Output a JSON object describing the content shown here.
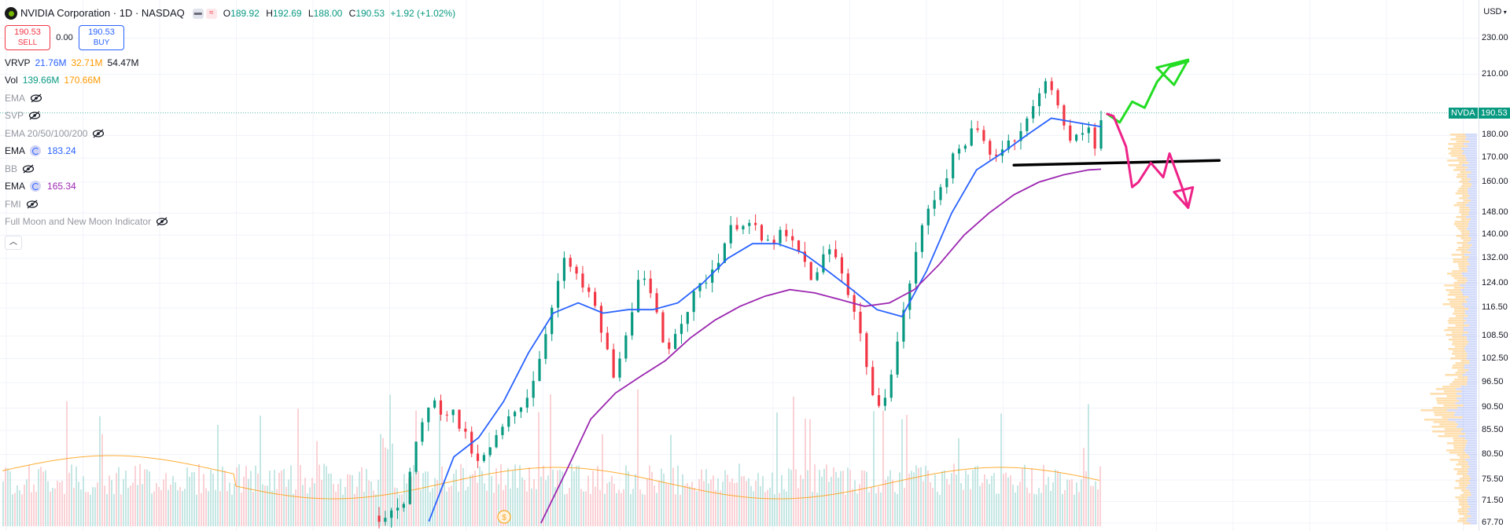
{
  "header": {
    "title": "NVIDIA Corporation · 1D · NASDAQ",
    "ohlc": [
      {
        "k": "O",
        "v": "189.92"
      },
      {
        "k": "H",
        "v": "192.69"
      },
      {
        "k": "L",
        "v": "188.00"
      },
      {
        "k": "C",
        "v": "190.53"
      }
    ],
    "change": "+1.92 (+1.02%)"
  },
  "trade": {
    "sell_price": "190.53",
    "sell_label": "SELL",
    "spread": "0.00",
    "buy_price": "190.53",
    "buy_label": "BUY"
  },
  "indicators": {
    "vrvp": {
      "name": "VRVP",
      "v1": "21.76M",
      "v2": "32.71M",
      "v3": "54.47M"
    },
    "vol": {
      "name": "Vol",
      "v1": "139.66M",
      "v2": "170.66M"
    },
    "ema_a": "EMA",
    "svp": "SVP",
    "ema_multi": "EMA 20/50/100/200",
    "ema_blue": {
      "name": "EMA",
      "value": "183.24"
    },
    "bb": "BB",
    "ema_purple": {
      "name": "EMA",
      "value": "165.34"
    },
    "fmi": "FMI",
    "moon": "Full Moon and New Moon Indicator"
  },
  "axis": {
    "currency": "USD",
    "ticks": [
      "230.00",
      "210.00",
      "180.00",
      "170.00",
      "160.00",
      "148.00",
      "140.00",
      "132.00",
      "124.00",
      "116.50",
      "108.50",
      "102.50",
      "96.50",
      "90.50",
      "85.50",
      "80.50",
      "75.50",
      "71.50",
      "67.70"
    ]
  },
  "tags": {
    "symbol": "NVDA",
    "price": "190.53"
  },
  "colors": {
    "up": "#089981",
    "down": "#f23645",
    "ema_blue": "#2962ff",
    "ema_purple": "#9c27b0",
    "vol_ma": "#ff9800",
    "draw_green": "#22dd22",
    "draw_pink": "#ee2288",
    "draw_black": "#000000"
  },
  "chart_data": {
    "type": "candlestick",
    "symbol": "NVDA",
    "interval": "1D",
    "exchange": "NASDAQ",
    "last_price": 190.53,
    "ylim": [
      67.7,
      234
    ],
    "price_scale": "log",
    "price_path": [
      [
        0,
        69
      ],
      [
        4,
        72
      ],
      [
        8,
        92
      ],
      [
        12,
        89
      ],
      [
        16,
        78
      ],
      [
        20,
        86
      ],
      [
        24,
        94
      ],
      [
        26,
        104
      ],
      [
        28,
        120
      ],
      [
        30,
        132
      ],
      [
        32,
        124
      ],
      [
        34,
        120
      ],
      [
        36,
        108
      ],
      [
        38,
        96
      ],
      [
        40,
        113
      ],
      [
        42,
        126
      ],
      [
        44,
        118
      ],
      [
        46,
        104
      ],
      [
        48,
        112
      ],
      [
        50,
        118
      ],
      [
        52,
        124
      ],
      [
        54,
        130
      ],
      [
        56,
        140
      ],
      [
        58,
        146
      ],
      [
        60,
        143
      ],
      [
        62,
        136
      ],
      [
        64,
        140
      ],
      [
        66,
        138
      ],
      [
        68,
        132
      ],
      [
        70,
        124
      ],
      [
        72,
        136
      ],
      [
        74,
        130
      ],
      [
        76,
        118
      ],
      [
        78,
        104
      ],
      [
        80,
        88
      ],
      [
        82,
        98
      ],
      [
        84,
        112
      ],
      [
        86,
        132
      ],
      [
        88,
        148
      ],
      [
        90,
        158
      ],
      [
        92,
        168
      ],
      [
        94,
        178
      ],
      [
        96,
        182
      ],
      [
        98,
        172
      ],
      [
        100,
        174
      ],
      [
        102,
        180
      ],
      [
        104,
        186
      ],
      [
        106,
        198
      ],
      [
        107,
        210
      ],
      [
        108,
        204
      ],
      [
        110,
        182
      ],
      [
        112,
        178
      ],
      [
        114,
        184
      ],
      [
        115,
        176
      ],
      [
        116,
        190
      ]
    ],
    "ema_blue_path": [
      [
        8,
        68
      ],
      [
        12,
        80
      ],
      [
        16,
        84
      ],
      [
        20,
        92
      ],
      [
        24,
        104
      ],
      [
        28,
        115
      ],
      [
        32,
        118
      ],
      [
        36,
        115
      ],
      [
        40,
        116
      ],
      [
        44,
        116
      ],
      [
        48,
        118
      ],
      [
        52,
        124
      ],
      [
        56,
        132
      ],
      [
        60,
        137
      ],
      [
        64,
        137
      ],
      [
        68,
        134
      ],
      [
        72,
        128
      ],
      [
        76,
        122
      ],
      [
        80,
        116
      ],
      [
        84,
        114
      ],
      [
        88,
        128
      ],
      [
        92,
        148
      ],
      [
        96,
        165
      ],
      [
        100,
        172
      ],
      [
        104,
        180
      ],
      [
        108,
        188
      ],
      [
        112,
        186
      ],
      [
        116,
        184
      ]
    ],
    "ema_purple_path": [
      [
        26,
        67.7
      ],
      [
        30,
        77
      ],
      [
        34,
        88
      ],
      [
        38,
        94
      ],
      [
        42,
        98
      ],
      [
        46,
        102
      ],
      [
        50,
        108
      ],
      [
        54,
        113
      ],
      [
        58,
        117
      ],
      [
        62,
        120
      ],
      [
        66,
        122
      ],
      [
        70,
        121
      ],
      [
        74,
        119
      ],
      [
        78,
        117
      ],
      [
        82,
        118
      ],
      [
        86,
        122
      ],
      [
        90,
        130
      ],
      [
        94,
        140
      ],
      [
        98,
        148
      ],
      [
        102,
        155
      ],
      [
        106,
        160
      ],
      [
        110,
        163
      ],
      [
        114,
        165
      ],
      [
        116,
        165.3
      ]
    ],
    "drawings": {
      "support_line": {
        "y": 167,
        "x_from": 102,
        "x_to": 135
      },
      "bull_path": [
        [
          117,
          190
        ],
        [
          119,
          186
        ],
        [
          121,
          196
        ],
        [
          123,
          193
        ],
        [
          125,
          206
        ],
        [
          127,
          214
        ],
        [
          130,
          217
        ]
      ],
      "bear_path": [
        [
          117,
          190
        ],
        [
          118,
          189
        ],
        [
          120,
          175
        ],
        [
          121,
          158
        ],
        [
          122,
          160
        ],
        [
          124,
          168
        ],
        [
          126,
          162
        ],
        [
          127,
          172
        ],
        [
          129,
          158
        ],
        [
          130,
          150
        ]
      ]
    },
    "n_bars": 118
  }
}
